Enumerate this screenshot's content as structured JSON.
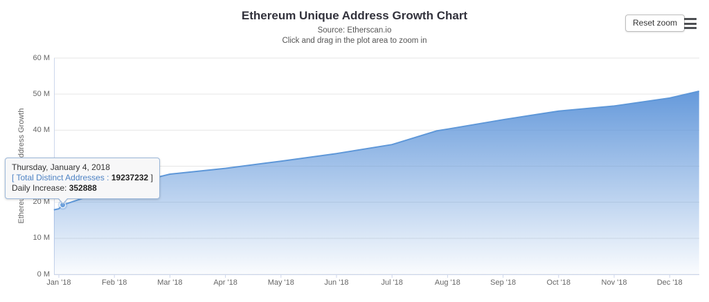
{
  "header": {
    "reset_zoom_label": "Reset zoom",
    "menu_icon": "hamburger-menu-icon"
  },
  "colors": {
    "line": "#5e97d8",
    "fill_top": "rgba(93,148,217,0.95)",
    "fill_bottom": "rgba(93,148,217,0.03)",
    "gridline": "#e6e6e6",
    "axis_line": "#ccd6eb",
    "axis_text": "#666666",
    "title_text": "#32323c",
    "tooltip_border": "#9cb8da",
    "tooltip_accent_blue": "#4d82c4"
  },
  "chart_data": {
    "type": "area",
    "title": "Ethereum Unique Address Growth Chart",
    "subtitle": [
      "Source: Etherscan.io",
      "Click and drag in the plot area to zoom in"
    ],
    "ylabel": "Ethereum Unique Address Growth",
    "xlabel": "",
    "ylim": [
      0,
      60
    ],
    "grid": true,
    "legend": "none",
    "ytick_labels": [
      "0 M",
      "10 M",
      "20 M",
      "30 M",
      "40 M",
      "50 M",
      "60 M"
    ],
    "ytick_values": [
      0,
      10,
      20,
      30,
      40,
      50,
      60
    ],
    "xtick_labels": [
      "Jan '18",
      "Feb '18",
      "Mar '18",
      "Apr '18",
      "May '18",
      "Jun '18",
      "Jul '18",
      "Aug '18",
      "Sep '18",
      "Oct '18",
      "Nov '18",
      "Dec '18"
    ],
    "monthly_values_m": [
      18.2,
      24.0,
      27.8,
      29.4,
      31.4,
      33.5,
      36.0,
      40.3,
      42.9,
      45.3,
      46.7,
      48.9
    ],
    "end_of_year_value_m": 50.8,
    "series": [
      {
        "name": "Total Distinct Addresses",
        "unit": "M addresses",
        "points_t_value": [
          [
            -0.09,
            17.9
          ],
          [
            0,
            18.2
          ],
          [
            0.07,
            19.237232
          ],
          [
            1,
            24.0
          ],
          [
            2,
            27.8
          ],
          [
            3,
            29.4
          ],
          [
            4,
            31.4
          ],
          [
            5,
            33.5
          ],
          [
            6,
            36.0
          ],
          [
            6.8,
            39.8
          ],
          [
            7,
            40.3
          ],
          [
            8,
            42.9
          ],
          [
            9,
            45.3
          ],
          [
            10,
            46.7
          ],
          [
            11,
            48.9
          ],
          [
            11.53,
            50.8
          ]
        ]
      }
    ],
    "marker_index": 2,
    "selected_point": {
      "date": "Thursday, January 4, 2018",
      "total_distinct_addresses": 19237232,
      "daily_increase": 352888
    }
  },
  "tooltip": {
    "date": "Thursday, January 4, 2018",
    "series_prefix": "[ Total Distinct Addresses : ",
    "value": "19237232",
    "suffix": " ]",
    "daily_label": "Daily Increase: ",
    "daily_value": "352888"
  }
}
